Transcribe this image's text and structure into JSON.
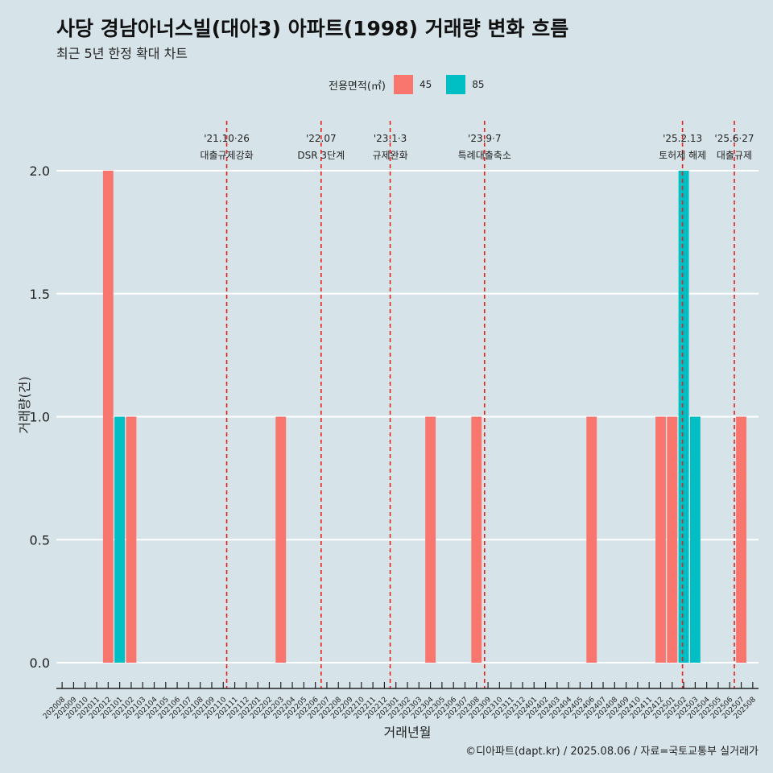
{
  "title": "사당 경남아너스빌(대아3) 아파트(1998) 거래량 변화 흐름",
  "subtitle": "최근 5년 한정 확대 차트",
  "caption": "©디아파트(dapt.kr) / 2025.08.06 / 자료=국토교통부 실거래가",
  "legend": {
    "title": "전용면적(㎡)",
    "items": [
      {
        "label": "45",
        "color": "#f8766d"
      },
      {
        "label": "85",
        "color": "#00bfc4"
      }
    ]
  },
  "chart_data": {
    "type": "bar",
    "xlabel": "거래년월",
    "ylabel": "거래량(건)",
    "ylim": [
      0,
      2
    ],
    "yticks": [
      "0.0",
      "0.5",
      "1.0",
      "1.5",
      "2.0"
    ],
    "categories": [
      "202008",
      "202009",
      "202010",
      "202011",
      "202012",
      "202101",
      "202102",
      "202103",
      "202104",
      "202105",
      "202106",
      "202107",
      "202108",
      "202109",
      "202110",
      "202111",
      "202112",
      "202201",
      "202202",
      "202203",
      "202204",
      "202205",
      "202206",
      "202207",
      "202208",
      "202209",
      "202210",
      "202211",
      "202212",
      "202301",
      "202302",
      "202303",
      "202304",
      "202305",
      "202306",
      "202307",
      "202308",
      "202309",
      "202310",
      "202311",
      "202312",
      "202401",
      "202402",
      "202403",
      "202404",
      "202405",
      "202406",
      "202407",
      "202408",
      "202409",
      "202410",
      "202411",
      "202412",
      "202501",
      "202502",
      "202503",
      "202504",
      "202505",
      "202506",
      "202507",
      "202508"
    ],
    "series": [
      {
        "name": "45",
        "color": "#f8766d",
        "points": [
          [
            "202012",
            2
          ],
          [
            "202102",
            1
          ],
          [
            "202203",
            1
          ],
          [
            "202304",
            1
          ],
          [
            "202308",
            1
          ],
          [
            "202406",
            1
          ],
          [
            "202412",
            1
          ],
          [
            "202501",
            1
          ],
          [
            "202507",
            1
          ]
        ]
      },
      {
        "name": "85",
        "color": "#00bfc4",
        "points": [
          [
            "202101",
            1
          ],
          [
            "202502",
            2
          ],
          [
            "202503",
            1
          ]
        ]
      }
    ],
    "annotations": [
      {
        "at": "202110",
        "offset": 0.8,
        "date": "'21.10·26",
        "text": "대출규제강화"
      },
      {
        "at": "202207",
        "offset": 0,
        "date": "'22.07",
        "text": "DSR 3단계"
      },
      {
        "at": "202301",
        "offset": 0,
        "date": "'23.1·3",
        "text": "규제완화"
      },
      {
        "at": "202309",
        "offset": 0.2,
        "date": "'23.9·7",
        "text": "특례대출축소"
      },
      {
        "at": "202502",
        "offset": 0.4,
        "date": "'25.2.13",
        "text": "토허제 해제"
      },
      {
        "at": "202506",
        "offset": 0.9,
        "date": "'25.6·27",
        "text": "대출규제"
      }
    ]
  }
}
